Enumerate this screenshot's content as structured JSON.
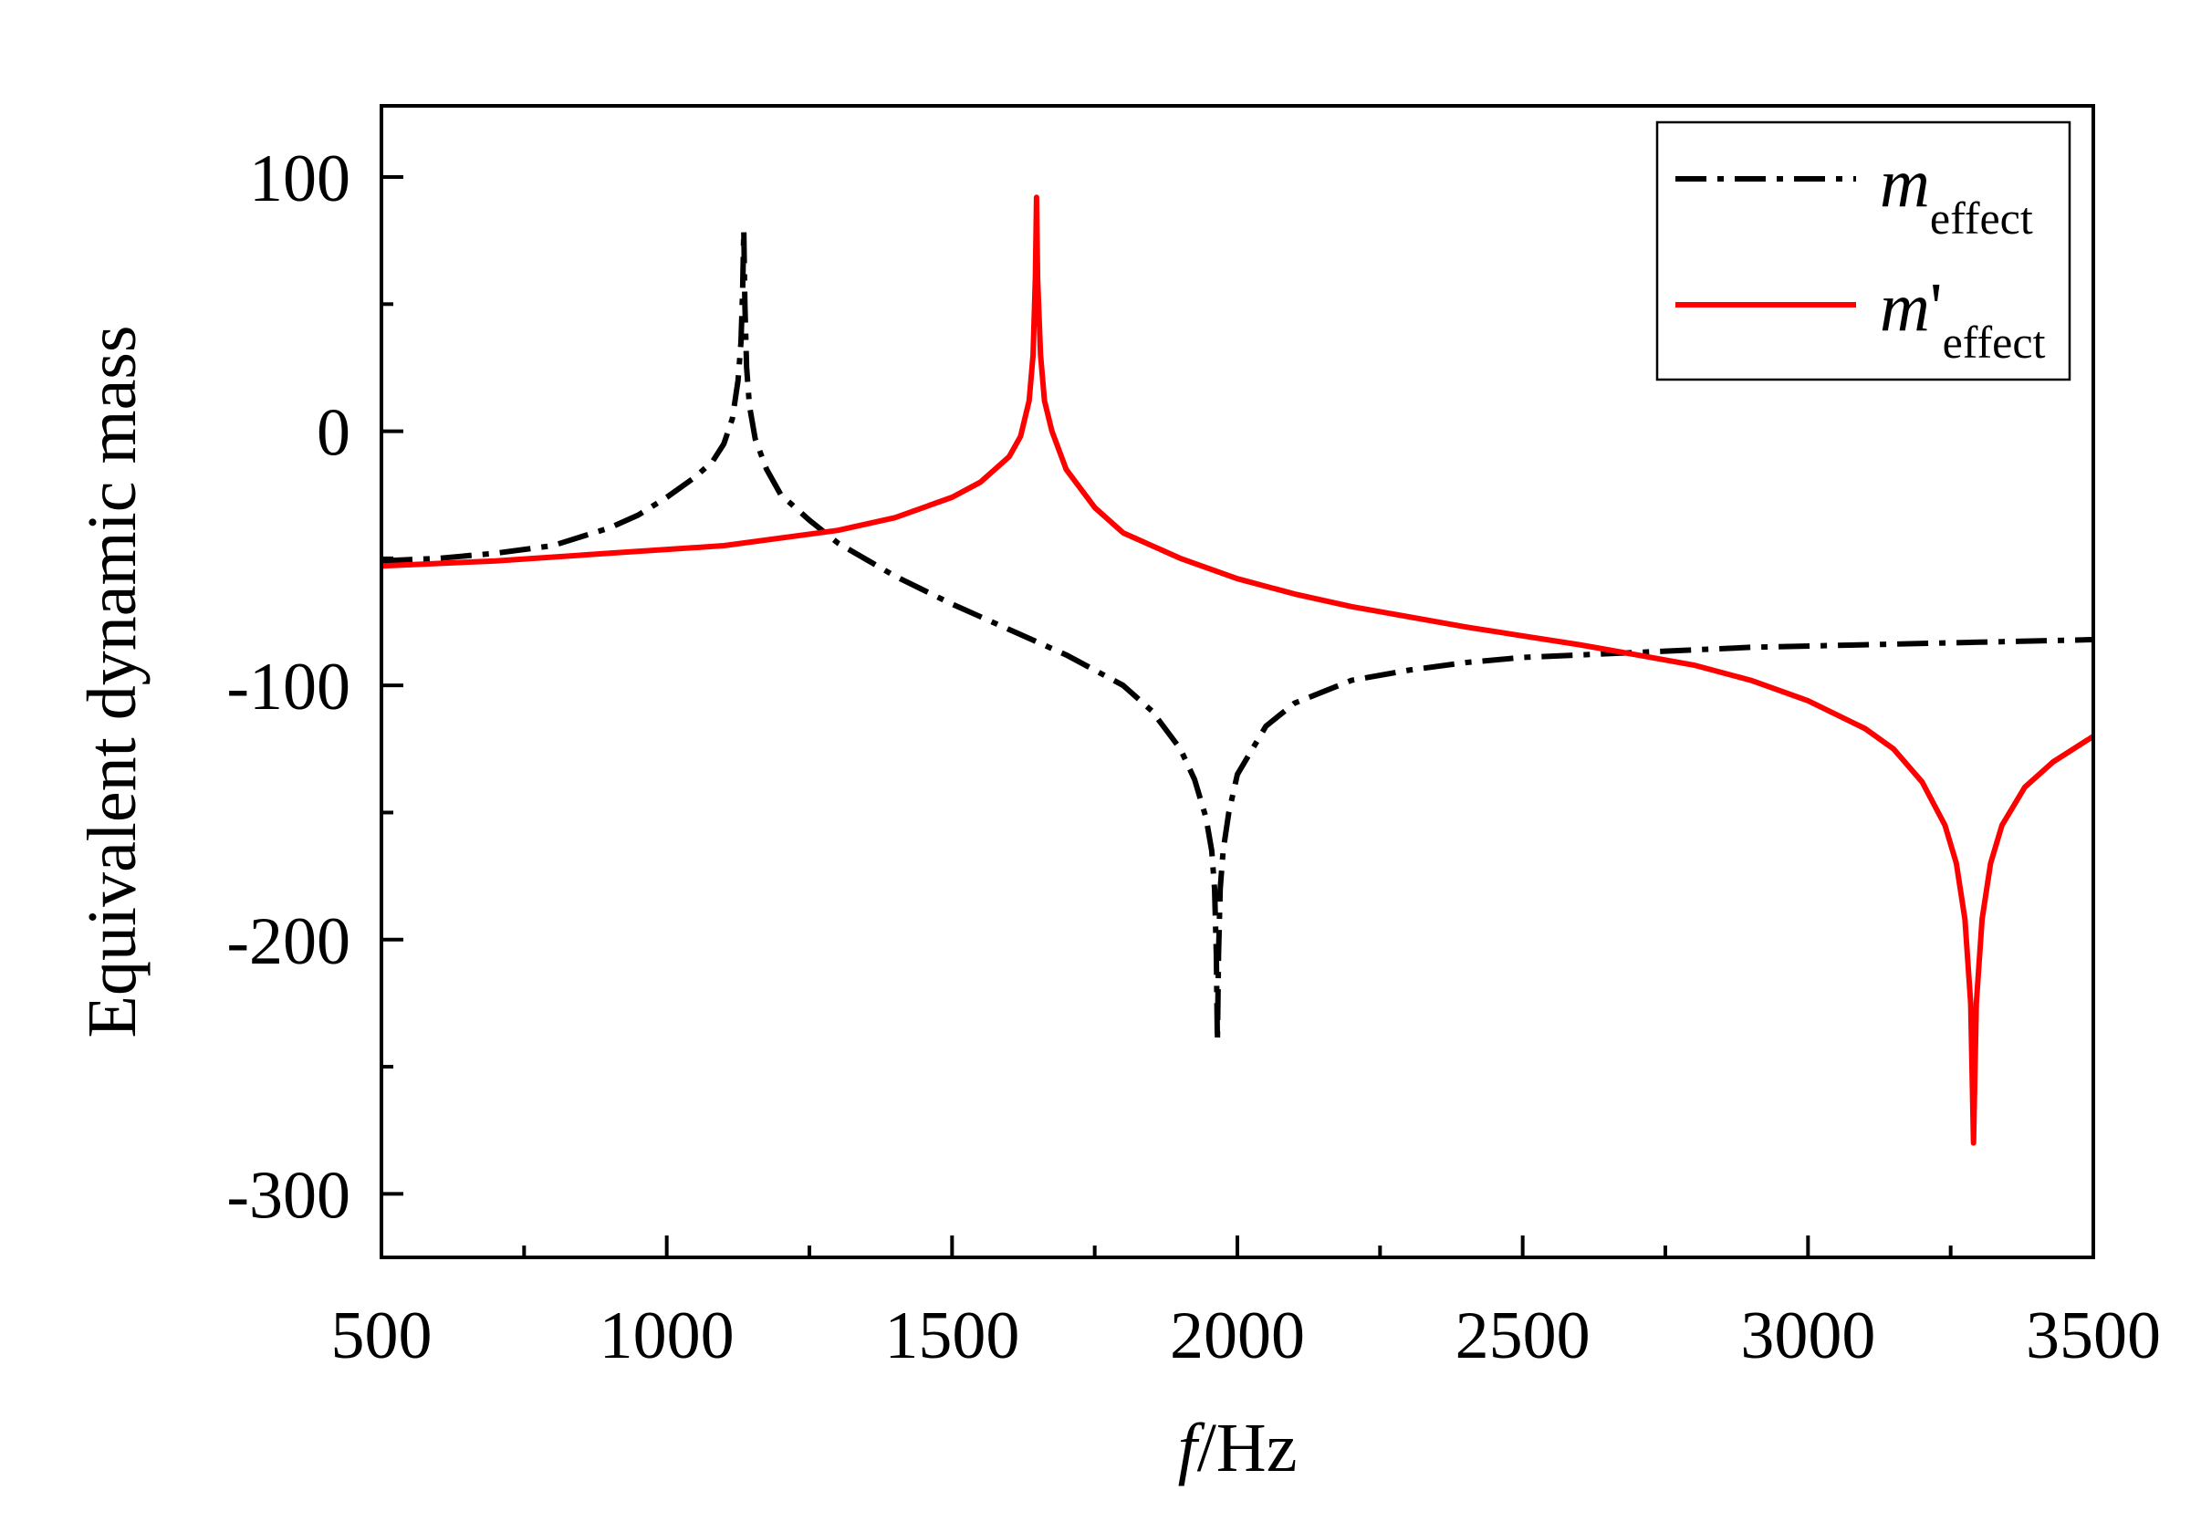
{
  "chart_data": {
    "type": "line",
    "title": "",
    "xlabel": {
      "italic": "f",
      "rest": "/Hz"
    },
    "ylabel": "Equivalent dynamic mass",
    "xlim": [
      500,
      3500
    ],
    "ylim": [
      -325,
      128
    ],
    "x_ticks": [
      500,
      1000,
      1500,
      2000,
      2500,
      3000,
      3500
    ],
    "y_ticks": [
      -300,
      -200,
      -100,
      0,
      100
    ],
    "x_tick_labels": [
      "500",
      "1000",
      "1500",
      "2000",
      "2500",
      "3000",
      "3500"
    ],
    "y_tick_labels": [
      "-300",
      "-200",
      "-100",
      "0",
      "100"
    ],
    "grid": false,
    "legend_position": "top-right",
    "series": [
      {
        "name": "m_effect",
        "legend_main": "m",
        "legend_prime": "",
        "legend_sub": "effect",
        "color": "#000000",
        "style": "dash-dot",
        "points": [
          [
            500,
            -51
          ],
          [
            600,
            -50
          ],
          [
            700,
            -48
          ],
          [
            800,
            -45
          ],
          [
            900,
            -38
          ],
          [
            950,
            -33
          ],
          [
            1000,
            -26
          ],
          [
            1050,
            -18
          ],
          [
            1080,
            -12
          ],
          [
            1100,
            -5
          ],
          [
            1115,
            5
          ],
          [
            1125,
            20
          ],
          [
            1130,
            35
          ],
          [
            1133,
            55
          ],
          [
            1135,
            79
          ],
          [
            1137,
            50
          ],
          [
            1140,
            25
          ],
          [
            1145,
            10
          ],
          [
            1155,
            -3
          ],
          [
            1175,
            -15
          ],
          [
            1200,
            -25
          ],
          [
            1250,
            -35
          ],
          [
            1300,
            -44
          ],
          [
            1400,
            -57
          ],
          [
            1500,
            -68
          ],
          [
            1600,
            -78
          ],
          [
            1700,
            -88
          ],
          [
            1800,
            -100
          ],
          [
            1850,
            -110
          ],
          [
            1900,
            -125
          ],
          [
            1925,
            -137
          ],
          [
            1945,
            -152
          ],
          [
            1955,
            -165
          ],
          [
            1960,
            -180
          ],
          [
            1963,
            -205
          ],
          [
            1965,
            -240
          ],
          [
            1967,
            -205
          ],
          [
            1970,
            -180
          ],
          [
            1975,
            -165
          ],
          [
            1985,
            -150
          ],
          [
            2000,
            -135
          ],
          [
            2050,
            -116
          ],
          [
            2100,
            -107
          ],
          [
            2200,
            -98
          ],
          [
            2300,
            -94
          ],
          [
            2400,
            -91
          ],
          [
            2500,
            -89
          ],
          [
            2700,
            -87
          ],
          [
            2900,
            -85
          ],
          [
            3100,
            -84
          ],
          [
            3300,
            -83
          ],
          [
            3500,
            -82
          ]
        ]
      },
      {
        "name": "m'_effect",
        "legend_main": "m",
        "legend_prime": "'",
        "legend_sub": "effect",
        "color": "#ff0000",
        "style": "solid",
        "points": [
          [
            500,
            -53
          ],
          [
            700,
            -51
          ],
          [
            900,
            -48
          ],
          [
            1100,
            -45
          ],
          [
            1300,
            -39
          ],
          [
            1400,
            -34
          ],
          [
            1500,
            -26
          ],
          [
            1550,
            -20
          ],
          [
            1600,
            -10
          ],
          [
            1620,
            -2
          ],
          [
            1635,
            12
          ],
          [
            1642,
            30
          ],
          [
            1646,
            60
          ],
          [
            1648,
            92
          ],
          [
            1650,
            60
          ],
          [
            1655,
            30
          ],
          [
            1662,
            12
          ],
          [
            1675,
            0
          ],
          [
            1700,
            -15
          ],
          [
            1750,
            -30
          ],
          [
            1800,
            -40
          ],
          [
            1900,
            -50
          ],
          [
            2000,
            -58
          ],
          [
            2100,
            -64
          ],
          [
            2200,
            -69
          ],
          [
            2400,
            -77
          ],
          [
            2600,
            -84
          ],
          [
            2700,
            -88
          ],
          [
            2800,
            -92
          ],
          [
            2900,
            -98
          ],
          [
            3000,
            -106
          ],
          [
            3100,
            -117
          ],
          [
            3150,
            -125
          ],
          [
            3200,
            -138
          ],
          [
            3240,
            -155
          ],
          [
            3260,
            -170
          ],
          [
            3275,
            -192
          ],
          [
            3285,
            -225
          ],
          [
            3290,
            -280
          ],
          [
            3295,
            -225
          ],
          [
            3305,
            -192
          ],
          [
            3320,
            -170
          ],
          [
            3340,
            -155
          ],
          [
            3380,
            -140
          ],
          [
            3430,
            -130
          ],
          [
            3500,
            -120
          ]
        ]
      }
    ]
  }
}
